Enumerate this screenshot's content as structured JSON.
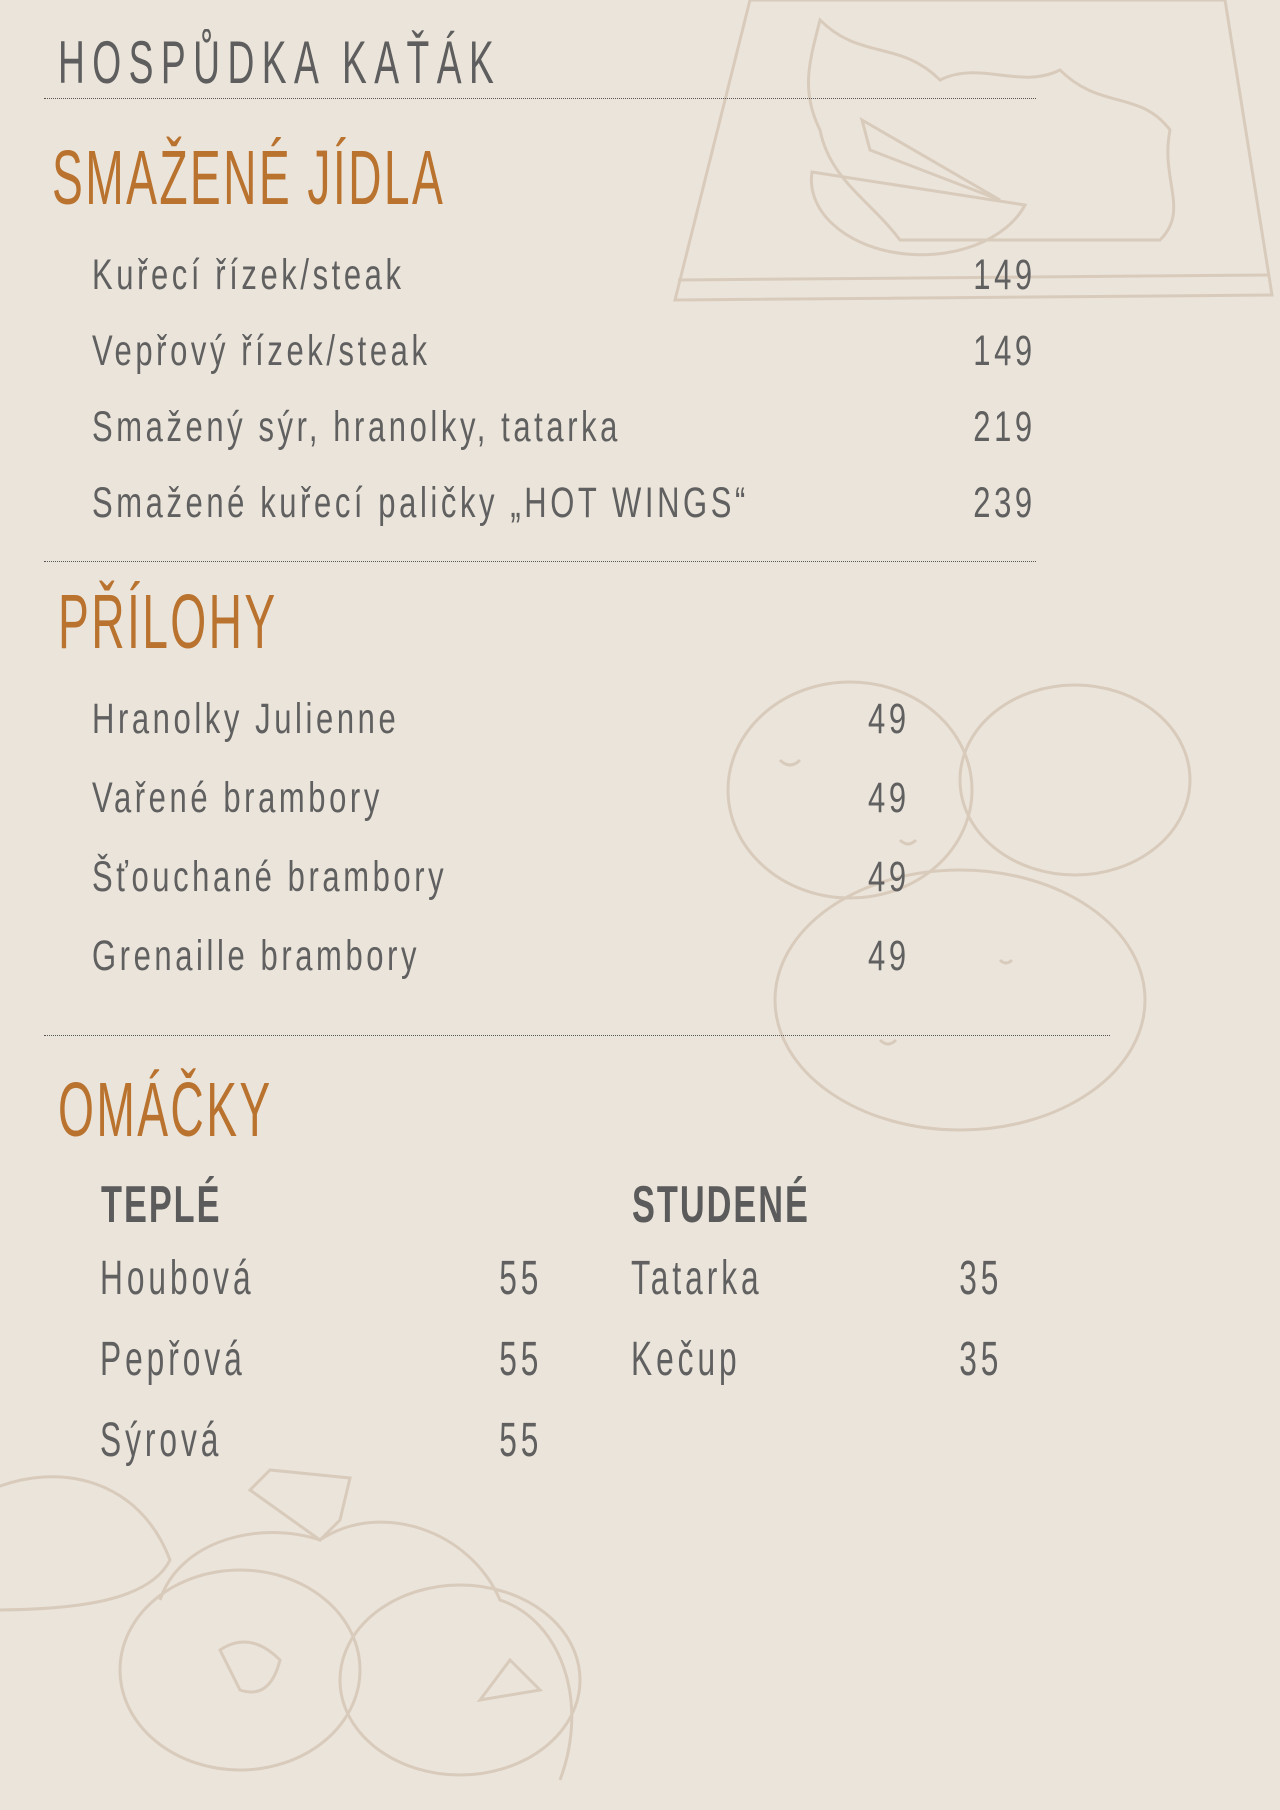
{
  "header": {
    "title": "HOSPŮDKA KAŤÁK"
  },
  "colors": {
    "background": "#ebe4da",
    "accent": "#b9732f",
    "text": "#606060",
    "illustration": "#d9cbbb"
  },
  "sections": {
    "fried": {
      "title": "SMAŽENÉ JÍDLA",
      "items": [
        {
          "name": "Kuřecí řízek/steak",
          "price": "149"
        },
        {
          "name": "Vepřový řízek/steak",
          "price": "149"
        },
        {
          "name": "Smažený sýr, hranolky, tatarka",
          "price": "219"
        },
        {
          "name": "Smažené kuřecí paličky „HOT WINGS“",
          "price": "239"
        }
      ]
    },
    "sides": {
      "title": "PŘÍLOHY",
      "items": [
        {
          "name": "Hranolky Julienne",
          "price": "49"
        },
        {
          "name": "Vařené brambory",
          "price": "49"
        },
        {
          "name": "Šťouchané brambory",
          "price": "49"
        },
        {
          "name": "Grenaille brambory",
          "price": "49"
        }
      ]
    },
    "sauces": {
      "title": "OMÁČKY",
      "warm": {
        "title": "TEPLÉ",
        "items": [
          {
            "name": "Houbová",
            "price": "55"
          },
          {
            "name": "Pepřová",
            "price": "55"
          },
          {
            "name": "Sýrová",
            "price": "55"
          }
        ]
      },
      "cold": {
        "title": "STUDENÉ",
        "items": [
          {
            "name": "Tatarka",
            "price": "35"
          },
          {
            "name": "Kečup",
            "price": "35"
          }
        ]
      }
    }
  }
}
